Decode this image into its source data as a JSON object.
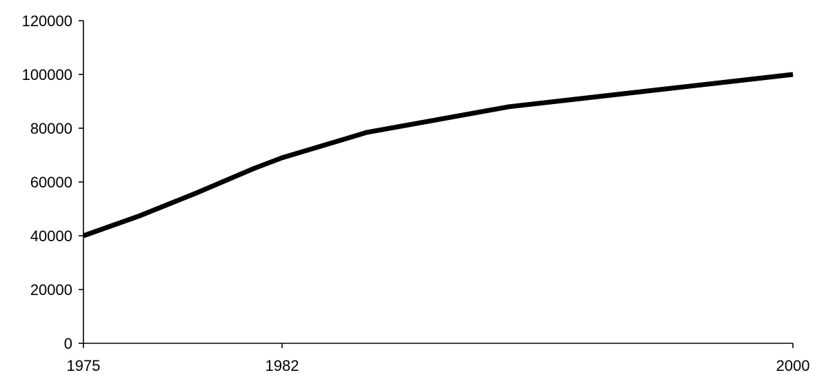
{
  "chart_data": {
    "type": "line",
    "title": "",
    "xlabel": "",
    "ylabel": "",
    "xlim": [
      1975,
      2000
    ],
    "ylim": [
      0,
      120000
    ],
    "grid": false,
    "legend": "none",
    "x_ticks": [
      1975,
      1982,
      2000
    ],
    "x_tick_labels": [
      "1975",
      "1982",
      "2000"
    ],
    "y_ticks": [
      0,
      20000,
      40000,
      60000,
      80000,
      100000,
      120000
    ],
    "y_tick_labels": [
      "0",
      "20000",
      "40000",
      "60000",
      "80000",
      "100000",
      "120000"
    ],
    "series": [
      {
        "color": "#000000",
        "x": [
          1975,
          1977,
          1979,
          1981,
          1982,
          1985,
          1990,
          1995,
          2000
        ],
        "y": [
          40000,
          47500,
          56000,
          65000,
          69000,
          78500,
          88000,
          94000,
          100000
        ]
      }
    ]
  }
}
